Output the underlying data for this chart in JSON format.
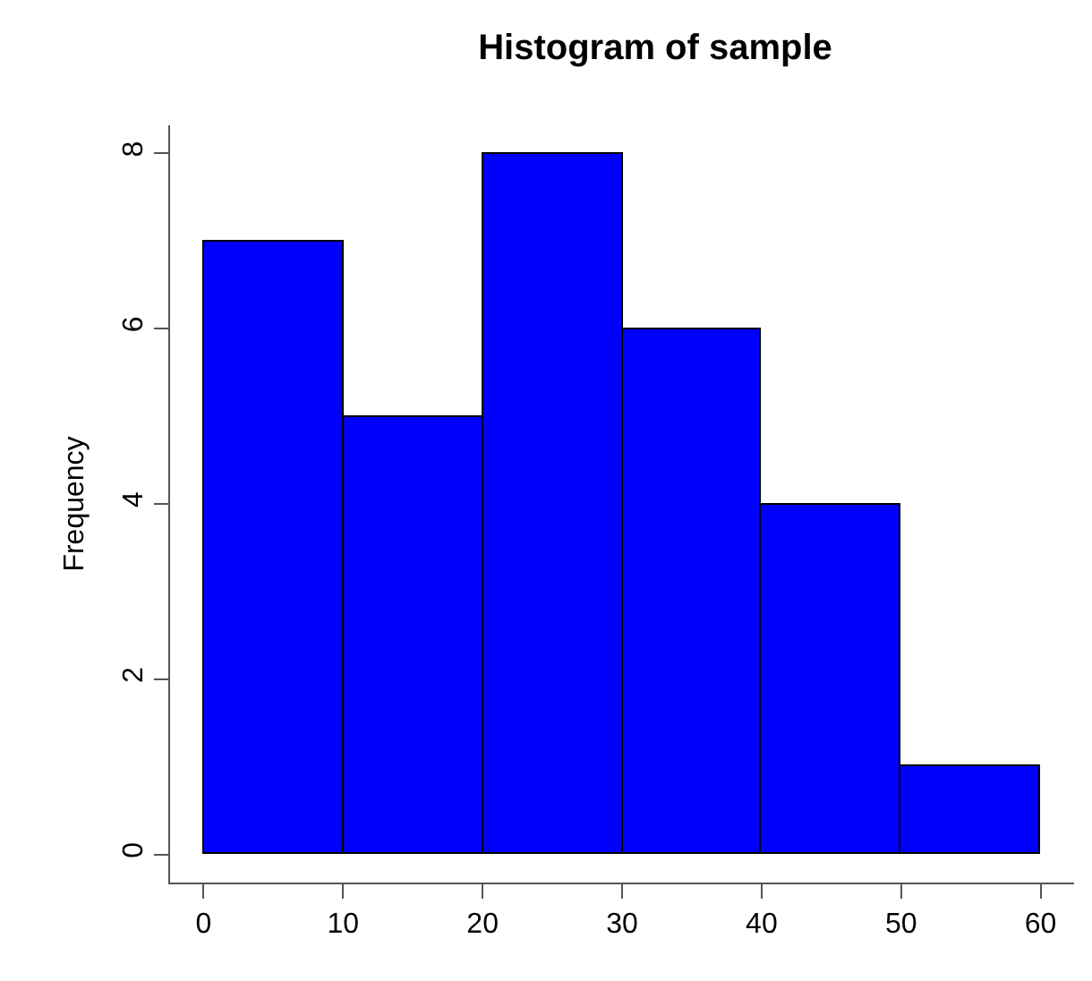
{
  "chart_data": {
    "type": "histogram",
    "title": "Histogram of sample",
    "ylabel": "Frequency",
    "bins": [
      0,
      10,
      20,
      30,
      40,
      50,
      60
    ],
    "values": [
      7,
      5,
      8,
      6,
      4,
      1
    ],
    "color": "#0000ff",
    "xlim": [
      -2.4,
      62.4
    ],
    "xticks": [
      0,
      10,
      20,
      30,
      40,
      50,
      60
    ],
    "ylim": [
      -0.32,
      8.32
    ],
    "yticks": [
      0,
      2,
      4,
      6,
      8
    ]
  }
}
